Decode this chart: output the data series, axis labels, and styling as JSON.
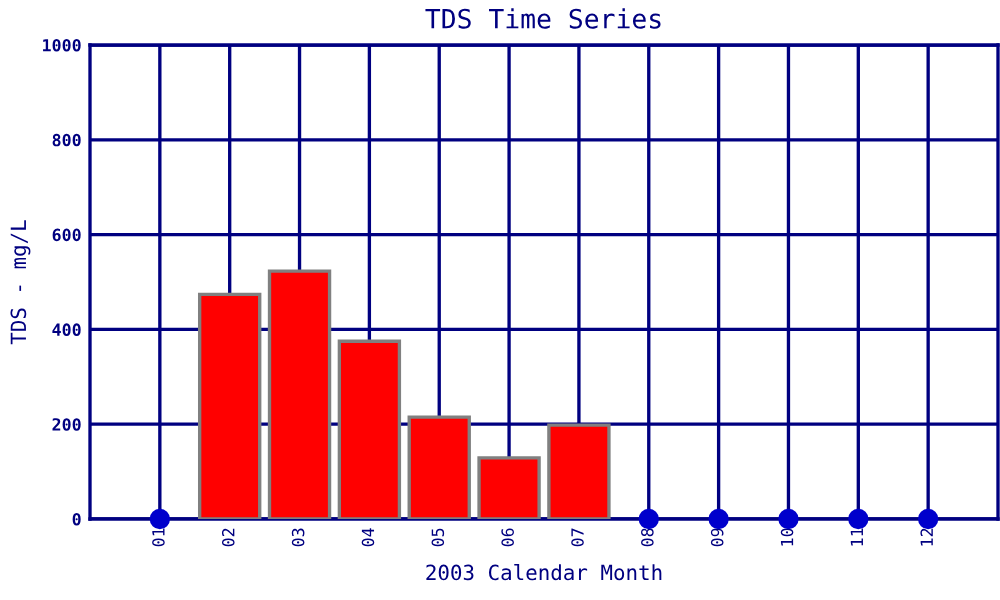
{
  "chart_data": {
    "type": "bar",
    "title": "TDS Time Series",
    "xlabel": "2003 Calendar Month",
    "ylabel": "TDS - mg/L",
    "categories": [
      "01",
      "02",
      "03",
      "04",
      "05",
      "06",
      "07",
      "08",
      "09",
      "10",
      "11",
      "12"
    ],
    "series": [
      {
        "color": "#ff0000",
        "values": [
          null,
          474,
          523,
          375,
          215,
          129,
          198,
          null,
          null,
          null,
          null,
          null
        ]
      },
      {
        "type": "scatter",
        "color": "#0000cc",
        "x": [
          "01",
          "08",
          "09",
          "10",
          "11",
          "12"
        ],
        "values": [
          0,
          0,
          0,
          0,
          0,
          0
        ]
      }
    ],
    "ylim": [
      0,
      1000
    ],
    "yticks": [
      0,
      200,
      400,
      600,
      800,
      1000
    ],
    "grid": true,
    "marker": "circle"
  }
}
